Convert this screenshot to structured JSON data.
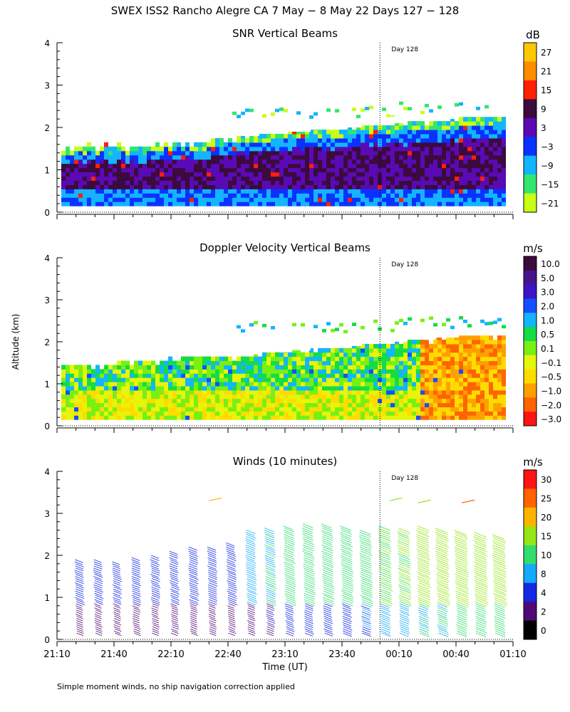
{
  "figure": {
    "title": "SWEX ISS2 Rancho Alegre CA    7 May  −   8 May 22 Days 127 − 128",
    "ylabel": "Altitude (km)",
    "xlabel": "Time (UT)",
    "footnote": "Simple moment winds, no ship navigation correction applied",
    "day_marker": "Day 128"
  },
  "chart_data": [
    {
      "type": "heatmap",
      "title": "SNR Vertical Beams",
      "ylim": [
        0,
        4
      ],
      "yticks": [
        "0",
        "1",
        "2",
        "3",
        "4"
      ],
      "xticks": [
        "21:10",
        "21:40",
        "22:10",
        "22:40",
        "23:10",
        "23:40",
        "00:10",
        "00:40",
        "01:10"
      ],
      "colorbar": {
        "unit": "dB",
        "labels": [
          "27",
          "21",
          "15",
          "9",
          "3",
          "−3",
          "−9",
          "−15",
          "−21"
        ],
        "colors": [
          "#ffc800",
          "#ff8c00",
          "#ff2000",
          "#3c0a3c",
          "#5a0ab4",
          "#0a32ff",
          "#14b4ff",
          "#32e66e",
          "#c8ff14"
        ]
      },
      "day_marker_time": "23:59",
      "echo_top_km": [
        1.45,
        1.5,
        1.5,
        1.5,
        1.55,
        1.6,
        1.7,
        1.75,
        1.8,
        1.85,
        1.9,
        1.95,
        2.0,
        2.05,
        2.1,
        2.15,
        2.2,
        2.2
      ],
      "echo_bottom_km": 0.15
    },
    {
      "type": "heatmap",
      "title": "Doppler Velocity Vertical Beams",
      "ylim": [
        0,
        4
      ],
      "yticks": [
        "0",
        "1",
        "2",
        "3",
        "4"
      ],
      "xticks": [
        "21:10",
        "21:40",
        "22:10",
        "22:40",
        "23:10",
        "23:40",
        "00:10",
        "00:40",
        "01:10"
      ],
      "colorbar": {
        "unit": "m/s",
        "labels": [
          "10.0",
          "5.0",
          "3.0",
          "2.0",
          "1.0",
          "0.5",
          "0.1",
          "−0.1",
          "−0.5",
          "−1.0",
          "−2.0",
          "−3.0"
        ],
        "colors": [
          "#3c0a3c",
          "#46148c",
          "#3c14c8",
          "#1450ff",
          "#14b4ff",
          "#14dc46",
          "#78f014",
          "#e6f50a",
          "#ffdc00",
          "#ffa000",
          "#ff6400",
          "#ff1414"
        ]
      },
      "day_marker_time": "23:59",
      "echo_top_km": [
        1.4,
        1.4,
        1.45,
        1.5,
        1.5,
        1.55,
        1.6,
        1.65,
        1.7,
        1.75,
        1.8,
        1.85,
        1.9,
        1.95,
        2.0,
        2.05,
        2.1,
        2.1
      ],
      "echo_bottom_km": 0.15
    },
    {
      "type": "scatter",
      "title": "Winds (10 minutes)",
      "ylim": [
        0,
        4
      ],
      "yticks": [
        "0",
        "1",
        "2",
        "3",
        "4"
      ],
      "xticks": [
        "21:10",
        "21:40",
        "22:10",
        "22:40",
        "23:10",
        "23:40",
        "00:10",
        "00:40",
        "01:10"
      ],
      "colorbar": {
        "unit": "m/s",
        "labels": [
          "30",
          "25",
          "20",
          "15",
          "10",
          "8",
          "4",
          "2",
          "0"
        ],
        "colors": [
          "#ff1414",
          "#ff6400",
          "#ffb400",
          "#96e614",
          "#32dc6e",
          "#14aaff",
          "#1428e6",
          "#500a78",
          "#000000"
        ]
      },
      "day_marker_time": "23:59",
      "profile_times_min": [
        10,
        20,
        30,
        40,
        50,
        60,
        70,
        80,
        90,
        100,
        110,
        120,
        130,
        140,
        150,
        160,
        170,
        180,
        190,
        200,
        210,
        220,
        230
      ],
      "profile_top_km": [
        1.95,
        1.95,
        1.9,
        2.0,
        2.05,
        2.15,
        2.2,
        2.2,
        2.3,
        2.6,
        2.65,
        2.7,
        2.75,
        2.75,
        2.7,
        2.6,
        2.7,
        2.65,
        2.7,
        2.65,
        2.6,
        2.55,
        2.5
      ],
      "profile_speed_ms": [
        5,
        5,
        4,
        5,
        5,
        5,
        6,
        6,
        6,
        8,
        9,
        10,
        11,
        11,
        12,
        13,
        14,
        14,
        15,
        15,
        16,
        16,
        16
      ]
    }
  ]
}
